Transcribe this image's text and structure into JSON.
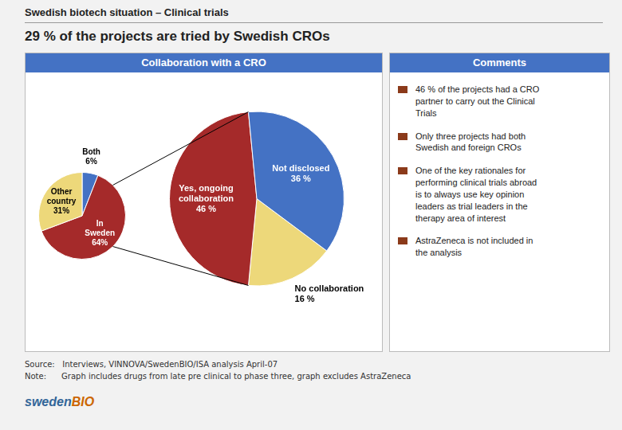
{
  "title": "Swedish biotech situation – Clinical trials",
  "subtitle": "29 % of the projects are tried by Swedish CROs",
  "chart_data": [
    {
      "type": "pie",
      "title": "Collaboration with a CRO",
      "categories": [
        "No collaboration",
        "Yes, ongoing collaboration",
        "Not disclosed"
      ],
      "values": [
        16,
        46,
        36
      ],
      "value_labels": [
        "16 %",
        "46 %",
        "36 %"
      ],
      "colors": [
        "#EDD87A",
        "#A52A2A",
        "#4472C4"
      ],
      "data_labels": true
    },
    {
      "type": "pie",
      "categories": [
        "Both",
        "In Sweden",
        "Other country"
      ],
      "values": [
        6,
        64,
        31
      ],
      "value_labels": [
        "6%",
        "64%",
        "31%"
      ],
      "colors": [
        "#4472C4",
        "#A52A2A",
        "#EDD87A"
      ],
      "data_labels": true
    }
  ],
  "annotations": [
    {
      "title": "Comments",
      "color": "#8B3A1A",
      "text": [
        "46 % of the projects had a CRO\npartner to carry out the Clinical\nTrials",
        "Only three projects had both\nSwedish and foreign CROs",
        "One of the key rationales for\nperforming clinical trials abroad\nis to always use key opinion\nleaders as trial leaders in the\ntherapy area of interest",
        "AstraZeneca is not included in\nthe analysis"
      ]
    },
    {
      "text": [
        "Source:   Interviews, VINNOVA/SwedenBIO/ISA analysis April-07",
        "Note:      Graph includes drugs from late pre clinical to phase three, graph excludes AstraZeneca"
      ]
    },
    {
      "text": [
        "sweden",
        "BIO"
      ],
      "colors": [
        "#336699",
        "#CC6600"
      ]
    }
  ]
}
